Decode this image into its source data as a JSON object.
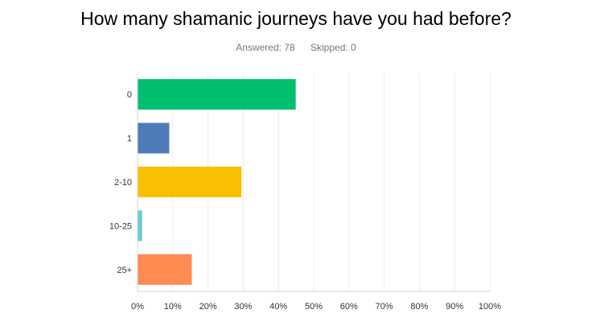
{
  "page": {
    "title": "How many shamanic journeys have you had before?",
    "answered": "Answered: 78",
    "skipped": "Skipped: 0"
  },
  "chart_data": {
    "type": "bar",
    "orientation": "horizontal",
    "categories": [
      "0",
      "1",
      "2-10",
      "10-25",
      "25+"
    ],
    "values": [
      44.9,
      9.0,
      29.5,
      1.3,
      15.4
    ],
    "colors": [
      "#00c070",
      "#4f7bbb",
      "#f8c000",
      "#6ccad6",
      "#ff8a52"
    ],
    "xlim": [
      0,
      100
    ],
    "x_ticks": [
      "0%",
      "10%",
      "20%",
      "30%",
      "40%",
      "50%",
      "60%",
      "70%",
      "80%",
      "90%",
      "100%"
    ],
    "grid": true,
    "title": "How many shamanic journeys have you had before?",
    "xlabel": "",
    "ylabel": ""
  }
}
